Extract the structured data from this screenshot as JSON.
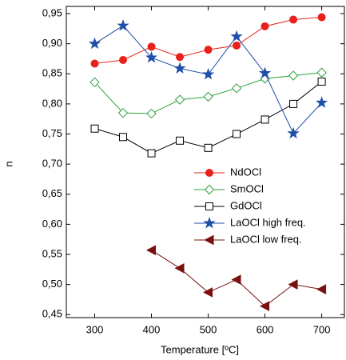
{
  "chart_data": {
    "type": "line",
    "xlabel": "Temperature [ºC]",
    "ylabel": "n",
    "x": [
      300,
      350,
      400,
      450,
      500,
      550,
      600,
      650,
      700
    ],
    "series": [
      {
        "name": "NdOCl",
        "color": "#e8211b",
        "marker": "circle",
        "values": [
          0.867,
          0.873,
          0.895,
          0.878,
          0.89,
          0.897,
          0.929,
          0.94,
          0.944
        ]
      },
      {
        "name": "SmOCl",
        "color": "#2e9e3a",
        "marker": "diamond",
        "values": [
          0.836,
          0.785,
          0.784,
          0.807,
          0.812,
          0.826,
          0.842,
          0.847,
          0.852
        ]
      },
      {
        "name": "GdOCl",
        "color": "#000000",
        "marker": "square",
        "values": [
          0.759,
          0.745,
          0.718,
          0.739,
          0.727,
          0.75,
          0.774,
          0.8,
          0.837
        ]
      },
      {
        "name": "LaOCl high freq.",
        "color": "#1f4fa8",
        "marker": "star",
        "values": [
          0.9,
          0.93,
          0.877,
          0.859,
          0.849,
          0.912,
          0.851,
          0.751,
          0.802
        ]
      },
      {
        "name": "LaOCl low freq.",
        "color": "#7a1010",
        "marker": "triangle-left",
        "values": [
          null,
          null,
          0.557,
          0.527,
          0.487,
          0.508,
          0.464,
          0.5,
          0.492
        ]
      }
    ],
    "xlim": [
      250,
      740
    ],
    "ylim": [
      0.445,
      0.962
    ],
    "xticks": [
      300,
      400,
      500,
      600,
      700
    ],
    "yticks": [
      {
        "value": 0.45,
        "label": "0,45"
      },
      {
        "value": 0.5,
        "label": "0,50"
      },
      {
        "value": 0.55,
        "label": "0,55"
      },
      {
        "value": 0.6,
        "label": "0,60"
      },
      {
        "value": 0.65,
        "label": "0,65"
      },
      {
        "value": 0.7,
        "label": "0,70"
      },
      {
        "value": 0.75,
        "label": "0,75"
      },
      {
        "value": 0.8,
        "label": "0,80"
      },
      {
        "value": 0.85,
        "label": "0,85"
      },
      {
        "value": 0.9,
        "label": "0,90"
      },
      {
        "value": 0.95,
        "label": "0,95"
      }
    ],
    "legend": "center-right"
  }
}
